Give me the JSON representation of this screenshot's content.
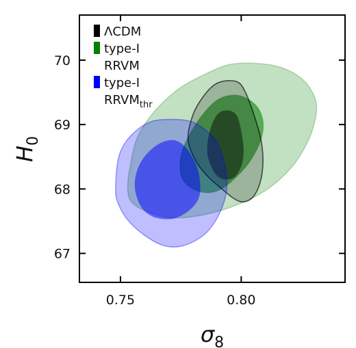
{
  "chart_data": {
    "type": "contour",
    "xlabel": "σ",
    "xlabel_sub": "8",
    "ylabel": "H",
    "ylabel_sub": "0",
    "xlim": [
      0.733,
      0.843
    ],
    "ylim": [
      66.55,
      70.7
    ],
    "xticks": [
      0.75,
      0.8
    ],
    "xtick_labels": [
      "0.75",
      "0.80"
    ],
    "yticks": [
      67,
      68,
      69,
      70
    ],
    "ytick_labels": [
      "67",
      "68",
      "69",
      "70"
    ],
    "legend_position": "top-left",
    "legend": [
      {
        "lines": [
          "ΛCDM"
        ],
        "color": "#000000"
      },
      {
        "lines": [
          "type-I",
          "RRVM"
        ],
        "color": "#008000"
      },
      {
        "lines": [
          "type-I",
          "RRVM"
        ],
        "sub": "thr",
        "color": "#0000ff"
      }
    ],
    "series": [
      {
        "color": "#008000",
        "contours": [
          {
            "level": "outer",
            "fill_opacity": 0.24,
            "edge_opacity": 0.25,
            "points": [
              [
                0.755,
                67.78
              ],
              [
                0.763,
                67.62
              ],
              [
                0.773,
                67.55
              ],
              [
                0.787,
                67.62
              ],
              [
                0.8,
                67.78
              ],
              [
                0.811,
                68.0
              ],
              [
                0.82,
                68.3
              ],
              [
                0.826,
                68.62
              ],
              [
                0.83,
                68.98
              ],
              [
                0.831,
                69.35
              ],
              [
                0.826,
                69.68
              ],
              [
                0.817,
                69.88
              ],
              [
                0.806,
                69.95
              ],
              [
                0.795,
                69.93
              ],
              [
                0.785,
                69.78
              ],
              [
                0.774,
                69.55
              ],
              [
                0.764,
                69.2
              ],
              [
                0.757,
                68.8
              ],
              [
                0.754,
                68.35
              ],
              [
                0.753,
                68.0
              ]
            ]
          },
          {
            "level": "inner",
            "fill_opacity": 0.55,
            "edge_opacity": 0.3,
            "points": [
              [
                0.775,
                68.22
              ],
              [
                0.778,
                68.05
              ],
              [
                0.784,
                67.95
              ],
              [
                0.79,
                67.97
              ],
              [
                0.796,
                68.12
              ],
              [
                0.803,
                68.4
              ],
              [
                0.808,
                68.75
              ],
              [
                0.809,
                69.05
              ],
              [
                0.806,
                69.3
              ],
              [
                0.799,
                69.45
              ],
              [
                0.791,
                69.4
              ],
              [
                0.784,
                69.15
              ],
              [
                0.778,
                68.8
              ],
              [
                0.775,
                68.5
              ]
            ]
          }
        ]
      },
      {
        "color": "#000000",
        "contours": [
          {
            "level": "outer",
            "fill_opacity": 0.2,
            "edge_opacity": 0.65,
            "points": [
              [
                0.778,
                68.78
              ],
              [
                0.78,
                69.15
              ],
              [
                0.784,
                69.42
              ],
              [
                0.789,
                69.62
              ],
              [
                0.794,
                69.68
              ],
              [
                0.799,
                69.65
              ],
              [
                0.802,
                69.48
              ],
              [
                0.805,
                69.18
              ],
              [
                0.808,
                68.8
              ],
              [
                0.809,
                68.45
              ],
              [
                0.808,
                68.12
              ],
              [
                0.805,
                67.88
              ],
              [
                0.801,
                67.8
              ],
              [
                0.797,
                67.85
              ],
              [
                0.792,
                68.0
              ],
              [
                0.786,
                68.2
              ],
              [
                0.781,
                68.45
              ]
            ]
          },
          {
            "level": "inner",
            "fill_opacity": 0.45,
            "edge_opacity": 0.0,
            "points": [
              [
                0.786,
                68.55
              ],
              [
                0.787,
                68.9
              ],
              [
                0.79,
                69.15
              ],
              [
                0.794,
                69.22
              ],
              [
                0.798,
                69.15
              ],
              [
                0.8,
                68.9
              ],
              [
                0.801,
                68.6
              ],
              [
                0.8,
                68.35
              ],
              [
                0.797,
                68.18
              ],
              [
                0.793,
                68.15
              ],
              [
                0.789,
                68.25
              ]
            ]
          }
        ]
      },
      {
        "color": "#0000ff",
        "contours": [
          {
            "level": "outer",
            "fill_opacity": 0.25,
            "edge_opacity": 0.35,
            "points": [
              [
                0.748,
                68.0
              ],
              [
                0.749,
                68.45
              ],
              [
                0.752,
                68.72
              ],
              [
                0.757,
                68.92
              ],
              [
                0.763,
                69.05
              ],
              [
                0.771,
                69.08
              ],
              [
                0.779,
                69.05
              ],
              [
                0.785,
                68.92
              ],
              [
                0.79,
                68.72
              ],
              [
                0.793,
                68.4
              ],
              [
                0.794,
                68.0
              ],
              [
                0.791,
                67.62
              ],
              [
                0.785,
                67.3
              ],
              [
                0.776,
                67.12
              ],
              [
                0.768,
                67.12
              ],
              [
                0.76,
                67.28
              ],
              [
                0.753,
                67.52
              ],
              [
                0.749,
                67.78
              ]
            ]
          },
          {
            "level": "inner",
            "fill_opacity": 0.5,
            "edge_opacity": 0.0,
            "points": [
              [
                0.756,
                68.0
              ],
              [
                0.757,
                68.3
              ],
              [
                0.761,
                68.55
              ],
              [
                0.767,
                68.72
              ],
              [
                0.773,
                68.75
              ],
              [
                0.778,
                68.6
              ],
              [
                0.782,
                68.3
              ],
              [
                0.783,
                67.95
              ],
              [
                0.78,
                67.72
              ],
              [
                0.773,
                67.55
              ],
              [
                0.765,
                67.55
              ],
              [
                0.759,
                67.7
              ]
            ]
          }
        ]
      }
    ]
  }
}
